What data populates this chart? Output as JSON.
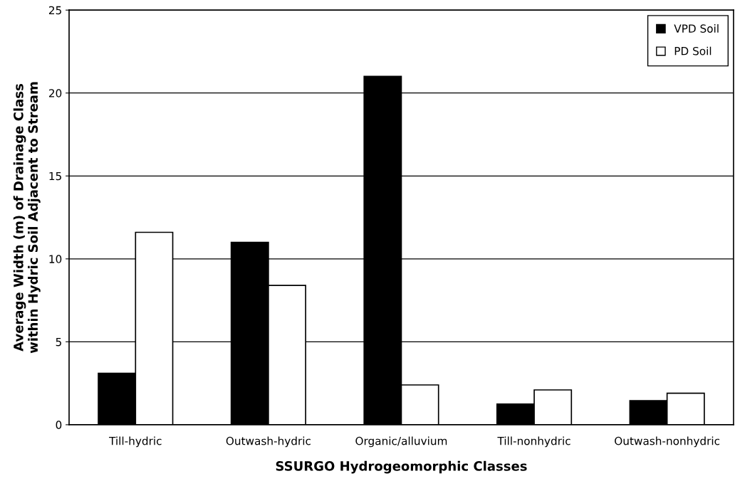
{
  "chart_data": {
    "type": "bar",
    "xlabel": "SSURGO Hydrogeomorphic Classes",
    "ylabel": "Average Width (m) of Drainage Class\nwithin Hydric Soil Adjacent to Stream",
    "categories": [
      "Till-hydric",
      "Outwash-hydric",
      "Organic/alluvium",
      "Till-nonhydric",
      "Outwash-nonhydric"
    ],
    "series": [
      {
        "name": "VPD Soil",
        "color": "#000000",
        "values": [
          3.1,
          11.0,
          21.0,
          1.25,
          1.45
        ]
      },
      {
        "name": "PD Soil",
        "color": "#ffffff",
        "values": [
          11.6,
          8.4,
          2.4,
          2.1,
          1.9
        ]
      }
    ],
    "ylim": [
      0,
      25
    ],
    "yticks": [
      0,
      5,
      10,
      15,
      20,
      25
    ],
    "grid": "y",
    "legend": "top right"
  }
}
